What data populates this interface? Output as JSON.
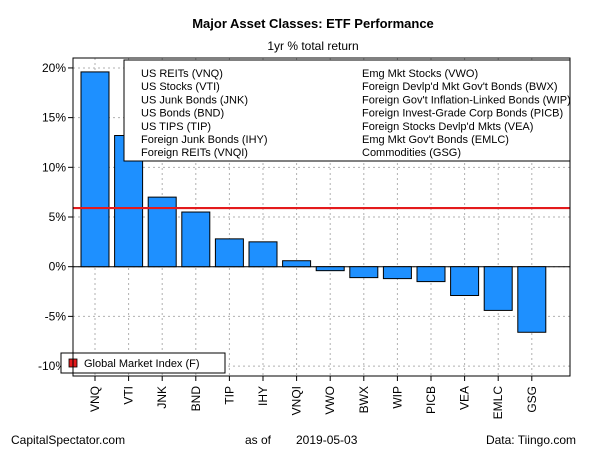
{
  "chart_data": {
    "type": "bar",
    "title": "Major Asset Classes: ETF Performance",
    "subtitle": "1yr % total return",
    "categories": [
      "VNQ",
      "VTI",
      "JNK",
      "BND",
      "TIP",
      "IHY",
      "VNQI",
      "VWO",
      "BWX",
      "WIP",
      "PICB",
      "VEA",
      "EMLC",
      "GSG"
    ],
    "values": [
      19.6,
      13.2,
      7.0,
      5.5,
      2.8,
      2.5,
      0.6,
      -0.4,
      -1.1,
      -1.2,
      -1.5,
      -2.9,
      -4.4,
      -6.6
    ],
    "ylim": [
      -11,
      21
    ],
    "yticks": [
      -10,
      -5,
      0,
      5,
      10,
      15,
      20
    ],
    "ytick_labels": [
      "-10%",
      "-5%",
      "0%",
      "5%",
      "10%",
      "15%",
      "20%"
    ],
    "grid": true,
    "bar_color": "#1e90ff",
    "reference_line": {
      "name": "Global Market Index (F)",
      "value": 5.9,
      "color": "#e41a1c"
    },
    "legend_left": [
      "US REITs (VNQ)",
      "US Stocks (VTI)",
      "US Junk Bonds (JNK)",
      "US Bonds (BND)",
      "US TIPS (TIP)",
      "Foreign Junk Bonds (IHY)",
      "Foreign REITs (VNQI)"
    ],
    "legend_right": [
      "Emg Mkt Stocks (VWO)",
      "Foreign Devlp'd Mkt Gov't Bonds (BWX)",
      "Foreign Gov't Inflation-Linked Bonds (WIP)",
      "Foreign Invest-Grade Corp Bonds (PICB)",
      "Foreign Stocks Devlp'd Mkts (VEA)",
      "Emg Mkt Gov't Bonds (EMLC)",
      "Commodities (GSG)"
    ]
  },
  "footer": {
    "source": "CapitalSpectator.com",
    "as_of_label": "as of",
    "date": "2019-05-03",
    "data_credit": "Data: Tiingo.com"
  }
}
